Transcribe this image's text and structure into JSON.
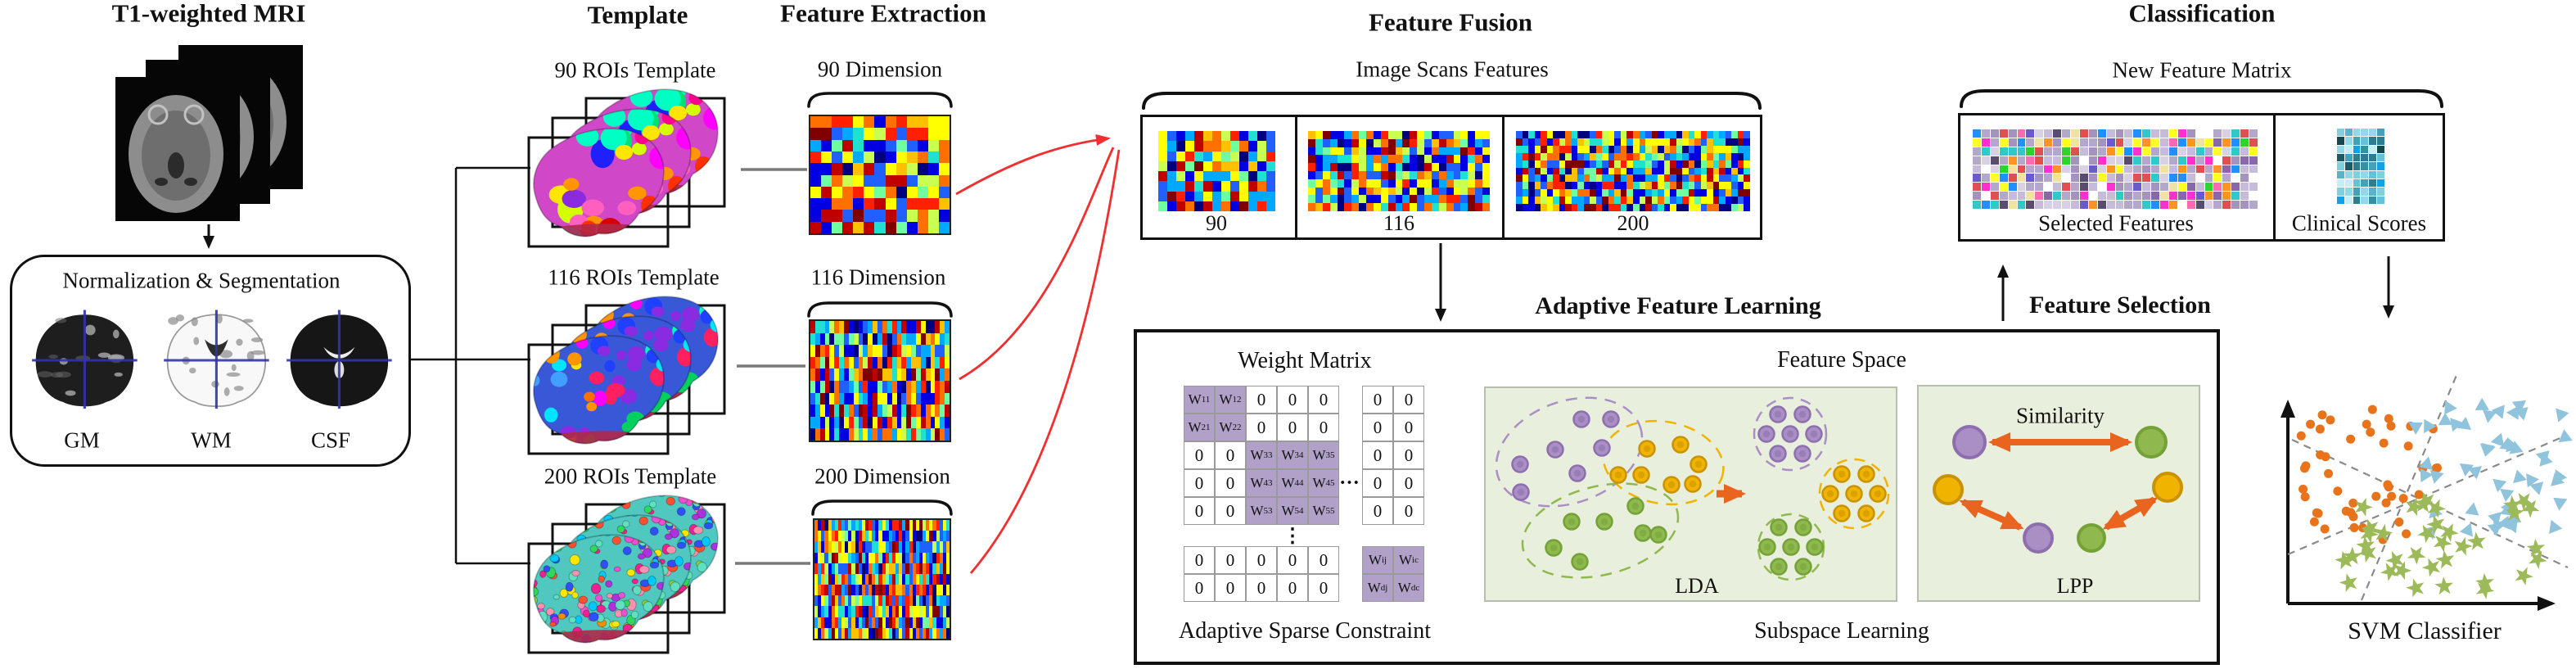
{
  "mri": {
    "title": "T1-weighted MRI"
  },
  "normalization": {
    "title": "Normalization & Segmentation",
    "items": [
      {
        "label": "GM"
      },
      {
        "label": "WM"
      },
      {
        "label": "CSF"
      }
    ]
  },
  "template": {
    "header": "Template",
    "groups": [
      {
        "label": "90 ROIs Template"
      },
      {
        "label": "116 ROIs Template"
      },
      {
        "label": "200 ROIs Template"
      }
    ]
  },
  "extraction": {
    "header": "Feature Extraction",
    "groups": [
      {
        "label": "90 Dimension"
      },
      {
        "label": "116 Dimension"
      },
      {
        "label": "200 Dimension"
      }
    ]
  },
  "fusion": {
    "header": "Feature Fusion",
    "subtitle": "Image Scans Features",
    "cells": [
      {
        "label": "90"
      },
      {
        "label": "116"
      },
      {
        "label": "200"
      }
    ]
  },
  "learning": {
    "header": "Adaptive Feature Learning",
    "weight_matrix": {
      "title": "Weight Matrix",
      "rows": [
        [
          {
            "t": "W",
            "s": "11",
            "h": true
          },
          {
            "t": "W",
            "s": "12",
            "h": true
          },
          {
            "t": "0"
          },
          {
            "t": "0"
          },
          {
            "t": "0"
          },
          {
            "t": ""
          },
          {
            "t": "0"
          },
          {
            "t": "0"
          }
        ],
        [
          {
            "t": "W",
            "s": "21",
            "h": true
          },
          {
            "t": "W",
            "s": "22",
            "h": true
          },
          {
            "t": "0"
          },
          {
            "t": "0"
          },
          {
            "t": "0"
          },
          {
            "t": ""
          },
          {
            "t": "0"
          },
          {
            "t": "0"
          }
        ],
        [
          {
            "t": "0"
          },
          {
            "t": "0"
          },
          {
            "t": "W",
            "s": "33",
            "h": true
          },
          {
            "t": "W",
            "s": "34",
            "h": true
          },
          {
            "t": "W",
            "s": "35",
            "h": true
          },
          {
            "t": ""
          },
          {
            "t": "0"
          },
          {
            "t": "0"
          }
        ],
        [
          {
            "t": "0"
          },
          {
            "t": "0"
          },
          {
            "t": "W",
            "s": "43",
            "h": true
          },
          {
            "t": "W",
            "s": "44",
            "h": true
          },
          {
            "t": "W",
            "s": "45",
            "h": true
          },
          {
            "t": "dots_h"
          },
          {
            "t": "0"
          },
          {
            "t": "0"
          }
        ],
        [
          {
            "t": "0"
          },
          {
            "t": "0"
          },
          {
            "t": "W",
            "s": "53",
            "h": true
          },
          {
            "t": "W",
            "s": "54",
            "h": true
          },
          {
            "t": "W",
            "s": "55",
            "h": true
          },
          {
            "t": ""
          },
          {
            "t": "0"
          },
          {
            "t": "0"
          }
        ],
        [
          {
            "t": ""
          },
          {
            "t": ""
          },
          {
            "t": ""
          },
          {
            "t": "dots_v"
          },
          {
            "t": ""
          },
          {
            "t": ""
          },
          {
            "t": ""
          },
          {
            "t": ""
          }
        ],
        [
          {
            "t": "0"
          },
          {
            "t": "0"
          },
          {
            "t": "0"
          },
          {
            "t": "0"
          },
          {
            "t": "0"
          },
          {
            "t": ""
          },
          {
            "t": "W",
            "s": "ij",
            "h": true
          },
          {
            "t": "W",
            "s": "ic",
            "h": true
          }
        ],
        [
          {
            "t": "0"
          },
          {
            "t": "0"
          },
          {
            "t": "0"
          },
          {
            "t": "0"
          },
          {
            "t": "0"
          },
          {
            "t": ""
          },
          {
            "t": "W",
            "s": "dj",
            "h": true
          },
          {
            "t": "W",
            "s": "dc",
            "h": true
          }
        ]
      ]
    },
    "sparse_label": "Adaptive Sparse Constraint",
    "feature_space_label": "Feature Space",
    "lda_label": "LDA",
    "lpp_label": "LPP",
    "similarity_label": "Similarity",
    "subspace_label": "Subspace Learning"
  },
  "selection": {
    "label": "Feature Selection"
  },
  "classification": {
    "header": "Classification",
    "subtitle": "New Feature Matrix",
    "cells": [
      {
        "label": "Selected Features"
      },
      {
        "label": "Clinical Scores"
      }
    ]
  },
  "svm": {
    "label": "SVM Classifier",
    "clusters": [
      {
        "marker": "circle",
        "color": "#e8731a",
        "count": 46,
        "seed": 101,
        "region": [
          2806,
          2985,
          500,
          665
        ]
      },
      {
        "marker": "triangle",
        "color": "#90c4dc",
        "count": 48,
        "seed": 202,
        "region": [
          2946,
          3134,
          487,
          655
        ]
      },
      {
        "marker": "star",
        "color": "#9cba59",
        "count": 36,
        "seed": 303,
        "region": [
          2822,
          3102,
          610,
          726
        ]
      }
    ]
  },
  "colors": {
    "accent_red_arrow": "#f03030",
    "accent_orange": "#e8641f",
    "matrix_highlight": "#b1a0c7",
    "panel_bg": "#e9efdd",
    "cluster_purple": "#a98fc4",
    "cluster_purple_dark": "#8d6fae",
    "cluster_yellow": "#f0b400",
    "cluster_yellow_dark": "#c89200",
    "cluster_green": "#8fb84e",
    "cluster_green_dark": "#74a238",
    "crosshair_blue": "#3333aa",
    "line_gray": "#7a7a7a"
  },
  "decor": {
    "mosaics": {
      "jet_palette": [
        "#00007f",
        "#0000e0",
        "#2060ff",
        "#00a8ff",
        "#20e0d0",
        "#70ffa0",
        "#c8ff50",
        "#ffff00",
        "#ffc000",
        "#ff7000",
        "#ff2000",
        "#c00000",
        "#800000",
        "#0000e0",
        "#00a8ff",
        "#ffff00",
        "#ff7000",
        "#2060ff"
      ],
      "pastel_palette": [
        "#b4a7cc",
        "#c6bbd8",
        "#a393bd",
        "#584d6e",
        "#ffffff",
        "#ff2fd0",
        "#ffff22",
        "#2ed42e",
        "#ff9422",
        "#2090ff",
        "#e05050",
        "#30c8c8",
        "#f2e2a0",
        "#b4a7cc",
        "#c6bbd8",
        "#a393bd",
        "#8868a8",
        "#d8d0e4",
        "#ff69b4",
        "#6a5acd",
        "#b4a7cc",
        "#c6bbd8"
      ],
      "teal_palette": [
        "#1d5a68",
        "#2e7d8e",
        "#44a2b8",
        "#66c2d6",
        "#93d8e6",
        "#c6ecf4",
        "#174852",
        "#35919f",
        "#58b4c8",
        "#12a0e6",
        "#7fd0de",
        "#2e7d8e"
      ],
      "items": [
        {
          "id": "m90",
          "cols": 13,
          "rows": 10,
          "palette": "jet",
          "seed": 11,
          "gap": 0
        },
        {
          "id": "m116",
          "cols": 29,
          "rows": 10,
          "palette": "jet",
          "seed": 22,
          "gap": 0
        },
        {
          "id": "m200",
          "cols": 40,
          "rows": 11,
          "palette": "jet",
          "seed": 33,
          "gap": 0
        },
        {
          "id": "f90",
          "cols": 13,
          "rows": 8,
          "palette": "jet",
          "seed": 44,
          "gap": 0
        },
        {
          "id": "f116",
          "cols": 25,
          "rows": 10,
          "palette": "jet",
          "seed": 55,
          "gap": 0
        },
        {
          "id": "f200",
          "cols": 38,
          "rows": 11,
          "palette": "jet",
          "seed": 66,
          "gap": 0
        },
        {
          "id": "selected",
          "cols": 32,
          "rows": 9,
          "palette": "pastel",
          "seed": 77,
          "gap": 1
        },
        {
          "id": "clinical",
          "cols": 6,
          "rows": 9,
          "palette": "teal",
          "seed": 88,
          "gap": 1
        }
      ]
    },
    "brains": {
      "t90": {
        "base": "#d048c8",
        "patches": 26,
        "rmin": 10,
        "rmax": 19,
        "seed": 5,
        "palette": [
          "#ff00ff",
          "#2020ff",
          "#00e5ff",
          "#d4ff00",
          "#8a2be2",
          "#ff3000",
          "#00e070",
          "#ff9500",
          "#ffe600",
          "#ff0090",
          "#00ffc3",
          "#d40000",
          "#ff60c0"
        ]
      },
      "t116": {
        "base": "#3858d8",
        "patches": 42,
        "rmin": 7,
        "rmax": 13,
        "seed": 6,
        "palette": [
          "#2040ff",
          "#ff4000",
          "#00e5ff",
          "#ff00ff",
          "#00d060",
          "#ff9500",
          "#8a2be2",
          "#ffe600",
          "#00ffc3",
          "#ff2060",
          "#40a0ff",
          "#ff7000"
        ]
      },
      "t200": {
        "base": "#50c8c0",
        "patches": 150,
        "rmin": 4,
        "rmax": 7,
        "seed": 7,
        "palette": [
          "#ff8c00",
          "#00c8ff",
          "#30d860",
          "#f050d0",
          "#ffe600",
          "#3050ff",
          "#ff5030",
          "#b030e0",
          "#60e0c0",
          "#ff90b0",
          "#90d030",
          "#f02090"
        ]
      }
    }
  }
}
